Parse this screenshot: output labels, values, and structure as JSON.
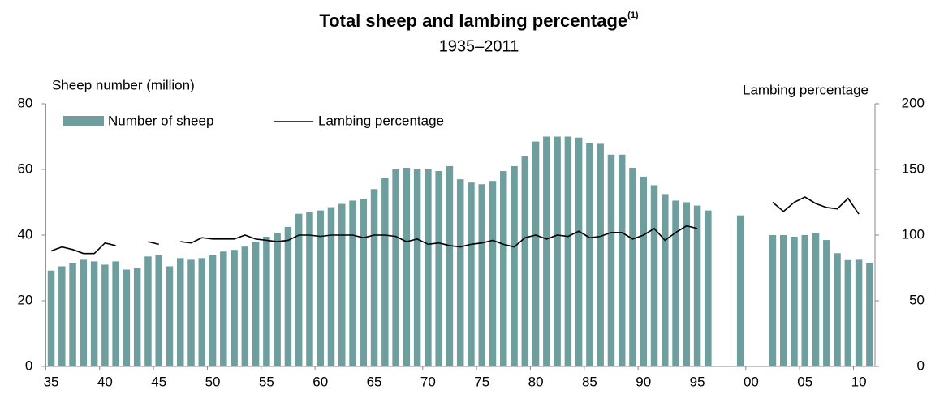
{
  "chart_data": {
    "type": "bar",
    "title": "Total sheep and lambing percentage",
    "title_note": "(1)",
    "subtitle": "1935–2011",
    "y_label": "Sheep number (million)",
    "y2_label": "Lambing percentage",
    "categories": [
      "35",
      null,
      null,
      null,
      null,
      "40",
      null,
      null,
      null,
      null,
      "45",
      null,
      null,
      null,
      null,
      "50",
      null,
      null,
      null,
      null,
      "55",
      null,
      null,
      null,
      null,
      "60",
      null,
      null,
      null,
      null,
      "65",
      null,
      null,
      null,
      null,
      "70",
      null,
      null,
      null,
      null,
      "75",
      null,
      null,
      null,
      null,
      "80",
      null,
      null,
      null,
      null,
      "85",
      null,
      null,
      null,
      null,
      "90",
      null,
      null,
      null,
      null,
      "95",
      null,
      null,
      null,
      null,
      "00",
      null,
      null,
      null,
      null,
      "05",
      null,
      null,
      null,
      null,
      "10",
      null
    ],
    "series": [
      {
        "name": "Number of sheep",
        "type": "bar",
        "color": "#6e9e9e",
        "values": [
          29.2,
          30.5,
          31.5,
          32.5,
          32,
          31,
          32,
          29.5,
          30,
          33.5,
          34,
          30.5,
          33,
          32.5,
          33,
          34,
          35,
          35.5,
          36.5,
          38,
          39.5,
          40.5,
          42.5,
          46.5,
          47,
          47.5,
          48.5,
          49.5,
          50.5,
          51,
          54,
          57.5,
          60,
          60.5,
          60,
          60,
          59.5,
          61,
          57,
          56,
          55.5,
          56.5,
          59.5,
          61,
          64,
          68.5,
          70,
          70,
          70,
          69.7,
          68,
          67.8,
          64.5,
          64.5,
          60.5,
          57.8,
          55.2,
          52.5,
          50.5,
          50,
          49,
          47.5,
          null,
          null,
          46,
          null,
          null,
          40,
          40,
          39.5,
          40,
          40.5,
          38.5,
          34.5,
          32.4,
          32.5,
          31.5
        ]
      },
      {
        "name": "Lambing percentage",
        "type": "line",
        "axis": "y2",
        "color": "#000000",
        "values": [
          88,
          91,
          89,
          86,
          86,
          94,
          92,
          null,
          null,
          95,
          93,
          null,
          95,
          94,
          98,
          97,
          97,
          97,
          100,
          97,
          96,
          95,
          96,
          100,
          100,
          99,
          100,
          100,
          100,
          98,
          100,
          100,
          99,
          95,
          97,
          93,
          94,
          92,
          91,
          93,
          94,
          96,
          93,
          91,
          98,
          100,
          97,
          100,
          99,
          103,
          98,
          99,
          102,
          102,
          97,
          100,
          105,
          96,
          102,
          107,
          105,
          null,
          null,
          null,
          null,
          null,
          null,
          125,
          118,
          125,
          129,
          124,
          121,
          120,
          128,
          116,
          null
        ]
      }
    ],
    "ylim": [
      0,
      80
    ],
    "yticks": [
      0,
      20,
      40,
      60,
      80
    ],
    "y2lim": [
      0,
      200
    ],
    "y2ticks": [
      0,
      50,
      100,
      150,
      200
    ],
    "grid": false
  }
}
